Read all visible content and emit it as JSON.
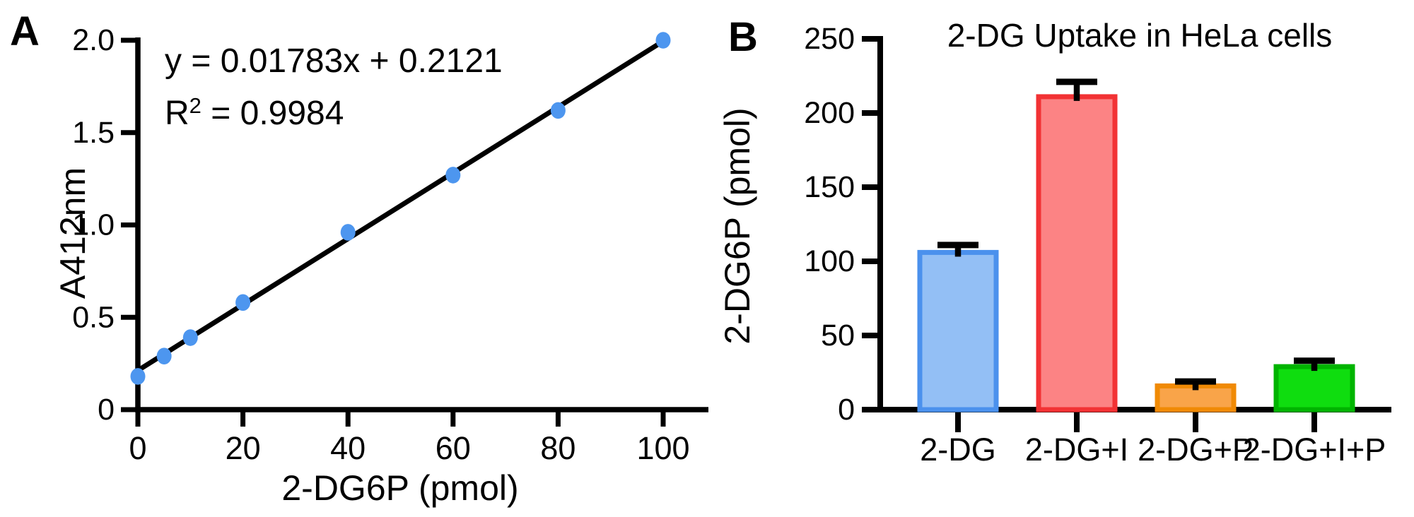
{
  "chart_data": [
    {
      "panel_label": "A",
      "type": "scatter",
      "xlabel": "2-DG6P (pmol)",
      "ylabel": "A412nm",
      "x": [
        0,
        5,
        10,
        20,
        40,
        60,
        80,
        100
      ],
      "y": [
        0.18,
        0.29,
        0.39,
        0.58,
        0.96,
        1.27,
        1.62,
        2.0
      ],
      "xlim": [
        0,
        100
      ],
      "ylim": [
        0,
        2.0
      ],
      "xticks": [
        0,
        20,
        40,
        60,
        80,
        100
      ],
      "xtick_labels": [
        "0",
        "20",
        "40",
        "60",
        "80",
        "100"
      ],
      "yticks": [
        0,
        0.5,
        1.0,
        1.5,
        2.0
      ],
      "ytick_labels": [
        "0",
        "0.5",
        "1.0",
        "1.5",
        "2.0"
      ],
      "fit_line": {
        "slope": 0.01783,
        "intercept": 0.2121,
        "equation_text": "y = 0.01783x + 0.2121",
        "r2_base": "R",
        "r2_sup": "2",
        "r2_rest": " = 0.9984",
        "r2_value": 0.9984
      },
      "point_color": "#4D96EF",
      "line_color": "#000000",
      "axis_color": "#000000",
      "grid": false,
      "legend": "none"
    },
    {
      "panel_label": "B",
      "type": "bar",
      "title": "2-DG Uptake in HeLa cells",
      "ylabel": "2-DG6P (pmol)",
      "categories": [
        "2-DG",
        "2-DG+I",
        "2-DG+P",
        "2-DG+I+P"
      ],
      "values": [
        106,
        211,
        16,
        29
      ],
      "errors": [
        5,
        10,
        3,
        4
      ],
      "bar_fill_colors": [
        "#93BFF5",
        "#FC8384",
        "#F9A449",
        "#0FDD0F"
      ],
      "bar_edge_colors": [
        "#4B91ED",
        "#F23234",
        "#F08A05",
        "#00B400"
      ],
      "error_color": "#000000",
      "axis_color": "#000000",
      "ylim": [
        0,
        250
      ],
      "yticks": [
        0,
        50,
        100,
        150,
        200,
        250
      ],
      "ytick_labels": [
        "0",
        "50",
        "100",
        "150",
        "200",
        "250"
      ],
      "grid": false,
      "legend": "none"
    }
  ]
}
